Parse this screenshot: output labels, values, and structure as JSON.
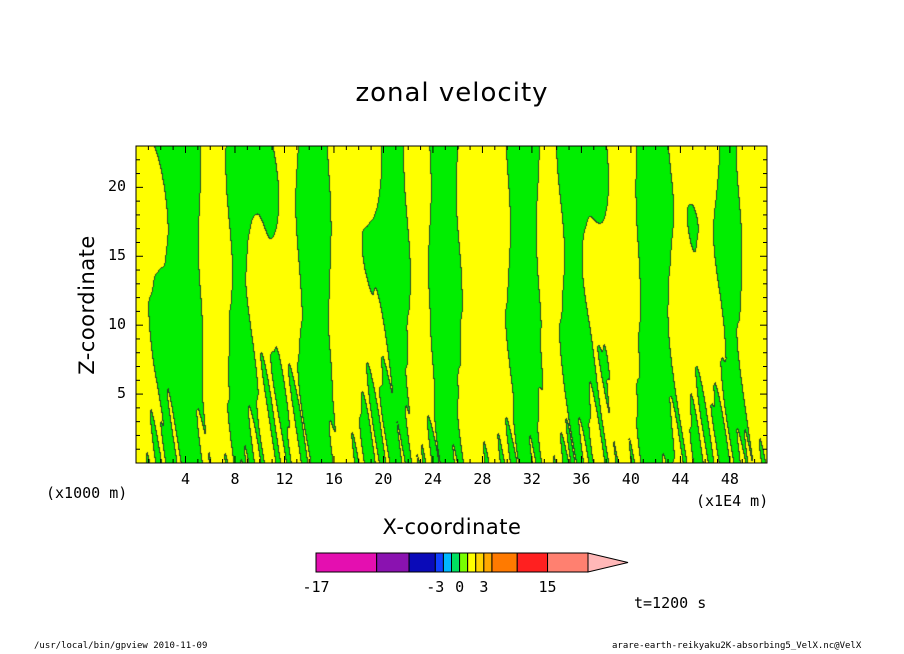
{
  "chart_data": {
    "type": "heatmap",
    "title": "zonal velocity",
    "xlabel": "X-coordinate",
    "ylabel": "Z-coordinate",
    "x_unit_left": "(x1000 m)",
    "x_unit_right": "(x1E4 m)",
    "x_ticks": [
      4,
      8,
      12,
      16,
      20,
      24,
      28,
      32,
      36,
      40,
      44,
      48
    ],
    "y_ticks": [
      5,
      10,
      15,
      20
    ],
    "xlim": [
      0,
      51
    ],
    "ylim": [
      0,
      23
    ],
    "field_colors": {
      "positive": "#ffff00",
      "negative": "#00ee00",
      "contour": "#2a4a2a"
    },
    "colorbar": {
      "colors": [
        "#e40fb0",
        "#8a12b0",
        "#0a0ab8",
        "#1040ff",
        "#00b8ff",
        "#00e060",
        "#78ff00",
        "#ffff00",
        "#ffd400",
        "#ffa800",
        "#ff7a00",
        "#ff2020",
        "#ff8070",
        "#ffb8b8"
      ],
      "boundaries": [
        -17,
        -10,
        -6,
        -3,
        -2,
        -1,
        0,
        1,
        2,
        3,
        6,
        10,
        15
      ],
      "tick_labels": [
        "-17",
        "-3",
        "0",
        "3",
        "15"
      ],
      "tick_values": [
        -17,
        -3,
        0,
        3,
        15
      ]
    },
    "time_label": "t=1200 s"
  },
  "footer": {
    "left": "/usr/local/bin/gpview  2010-11-09",
    "right": "arare-earth-reikyaku2K-absorbing5_VelX.nc@VelX"
  }
}
